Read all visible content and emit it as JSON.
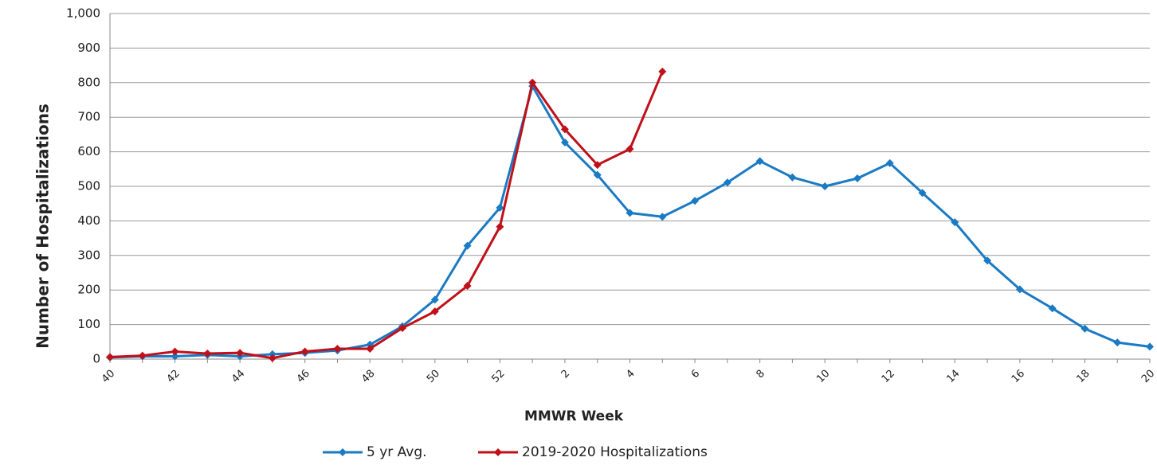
{
  "chart_data": {
    "type": "line",
    "x_label": "MMWR Week",
    "y_label": "Number of Hospitalizations",
    "categories": [
      "40",
      null,
      "42",
      null,
      "44",
      null,
      "46",
      null,
      "48",
      null,
      "50",
      null,
      "52",
      null,
      "2",
      null,
      "4",
      null,
      "6",
      null,
      "8",
      null,
      "10",
      null,
      "12",
      null,
      "14",
      null,
      "16",
      null,
      "18",
      null,
      "20"
    ],
    "series": [
      {
        "name": "5 yr Avg.",
        "color": "#1a7ac4",
        "values": [
          5,
          8,
          8,
          12,
          8,
          14,
          18,
          25,
          42,
          95,
          172,
          328,
          438,
          790,
          627,
          533,
          423,
          412,
          458,
          511,
          573,
          526,
          500,
          523,
          567,
          481,
          396,
          285,
          202,
          147,
          88,
          48,
          36
        ]
      },
      {
        "name": "2019-2020 Hospitalizations",
        "color": "#c0101a",
        "values": [
          6,
          10,
          22,
          16,
          18,
          3,
          22,
          30,
          30,
          90,
          138,
          212,
          383,
          800,
          665,
          562,
          608,
          832,
          null,
          null,
          null,
          null,
          null,
          null,
          null,
          null,
          null,
          null,
          null,
          null,
          null,
          null,
          null
        ]
      }
    ],
    "ylim": [
      0,
      1000
    ],
    "yticks": [
      0,
      100,
      200,
      300,
      400,
      500,
      600,
      700,
      800,
      900,
      {
        "value": 1000,
        "label": "1,000"
      }
    ],
    "grid": true,
    "legend": "bottom"
  }
}
